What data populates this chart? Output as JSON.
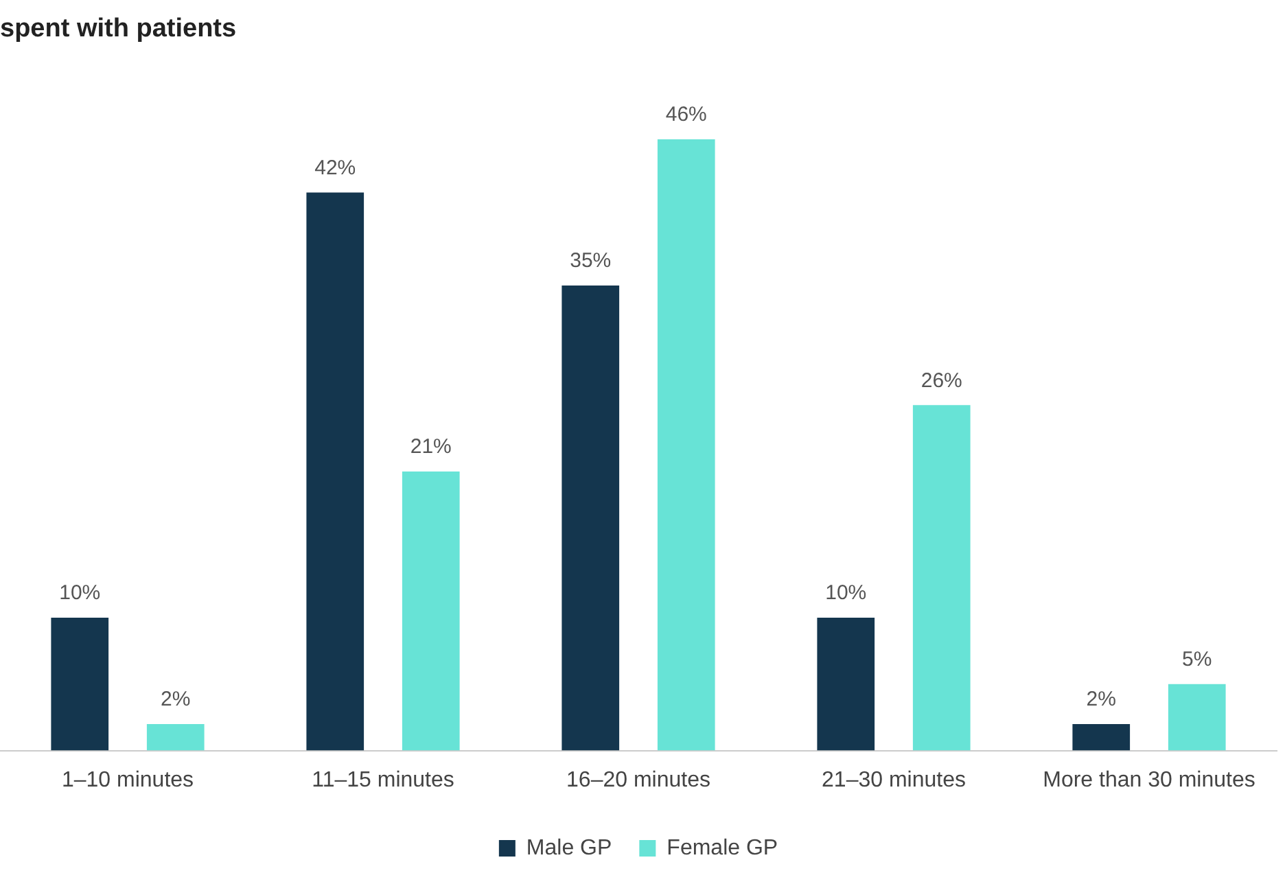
{
  "chart_data": {
    "type": "bar",
    "title": "spent with patients",
    "categories": [
      "1–10 minutes",
      "11–15 minutes",
      "16–20 minutes",
      "21–30 minutes",
      "More than 30 minutes"
    ],
    "series": [
      {
        "name": "Male GP",
        "color": "#14364e",
        "values": [
          10,
          42,
          35,
          10,
          2
        ],
        "value_labels": [
          "10%",
          "42%",
          "35%",
          "10%",
          "2%"
        ]
      },
      {
        "name": "Female GP",
        "color": "#67e3d6",
        "values": [
          2,
          21,
          46,
          26,
          5
        ],
        "value_labels": [
          "2%",
          "21%",
          "46%",
          "26%",
          "5%"
        ]
      }
    ],
    "grid": false,
    "legend": "bottom"
  }
}
